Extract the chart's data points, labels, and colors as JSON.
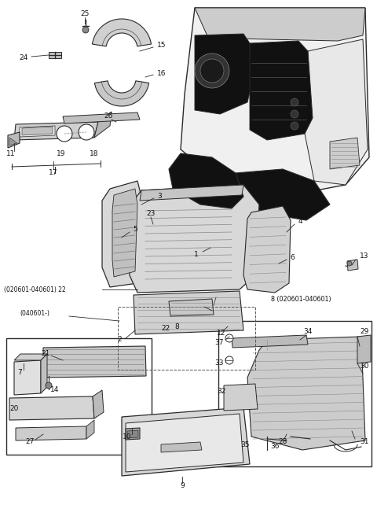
{
  "bg_color": "#ffffff",
  "fig_width": 4.8,
  "fig_height": 6.56,
  "dpi": 100,
  "line_color": "#2a2a2a",
  "gray_fill": "#d8d8d8",
  "dark_fill": "#111111",
  "mid_gray": "#aaaaaa"
}
